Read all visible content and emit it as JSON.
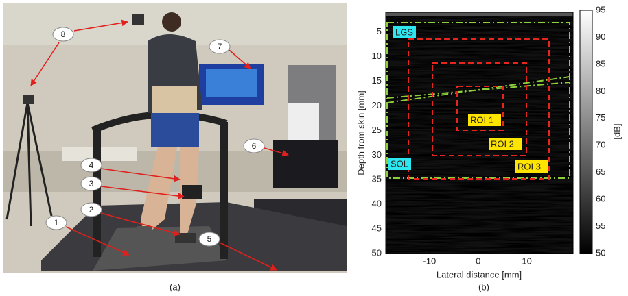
{
  "panel_a": {
    "caption": "(a)",
    "markers": [
      "1",
      "2",
      "3",
      "4",
      "5",
      "6",
      "7",
      "8"
    ]
  },
  "panel_b": {
    "caption": "(b)",
    "xlabel": "Lateral distance [mm]",
    "ylabel": "Depth from skin [mm]",
    "xlim": [
      -19,
      19.5
    ],
    "xticks": [
      -10,
      0,
      10
    ],
    "ylim": [
      1,
      50
    ],
    "yticks": [
      5,
      10,
      15,
      20,
      25,
      30,
      35,
      40,
      45,
      50
    ],
    "colorbar": {
      "label": "[dB]",
      "lim": [
        50,
        95
      ],
      "ticks": [
        50,
        55,
        60,
        65,
        70,
        75,
        80,
        85,
        90,
        95
      ]
    },
    "muscle_labels": [
      "LGS",
      "SOL"
    ],
    "roi_labels": [
      "ROI 1",
      "ROI 2",
      "ROI 3"
    ]
  }
}
